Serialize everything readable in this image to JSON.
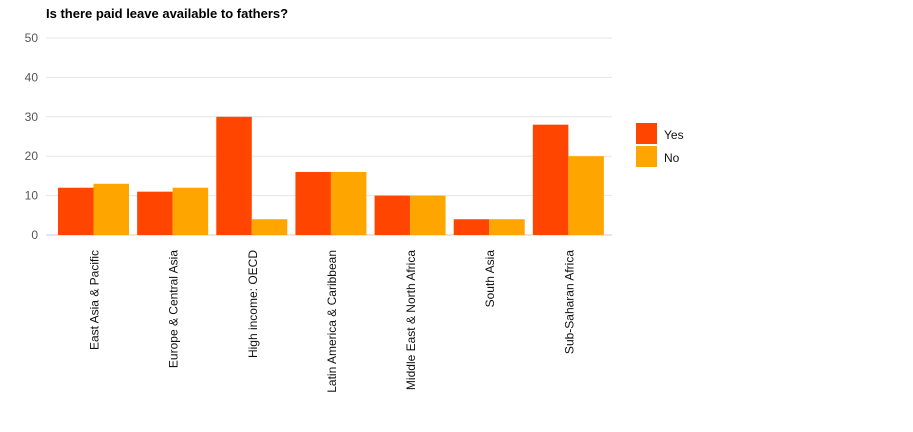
{
  "chart_data": {
    "type": "bar",
    "title": "Is there paid leave available to fathers?",
    "categories": [
      "East Asia & Pacific",
      "Europe & Central Asia",
      "High income: OECD",
      "Latin America & Caribbean",
      "Middle East & North Africa",
      "South Asia",
      "Sub-Saharan Africa"
    ],
    "series": [
      {
        "name": "Yes",
        "color": "#ff4500",
        "values": [
          12,
          11,
          30,
          16,
          10,
          4,
          28
        ]
      },
      {
        "name": "No",
        "color": "#ffa500",
        "values": [
          13,
          12,
          4,
          16,
          10,
          4,
          20
        ]
      }
    ],
    "yticks": [
      "0",
      "10",
      "20",
      "30",
      "40",
      "50"
    ],
    "ylim": [
      0,
      50
    ],
    "grid": true,
    "legend_position": "right"
  }
}
